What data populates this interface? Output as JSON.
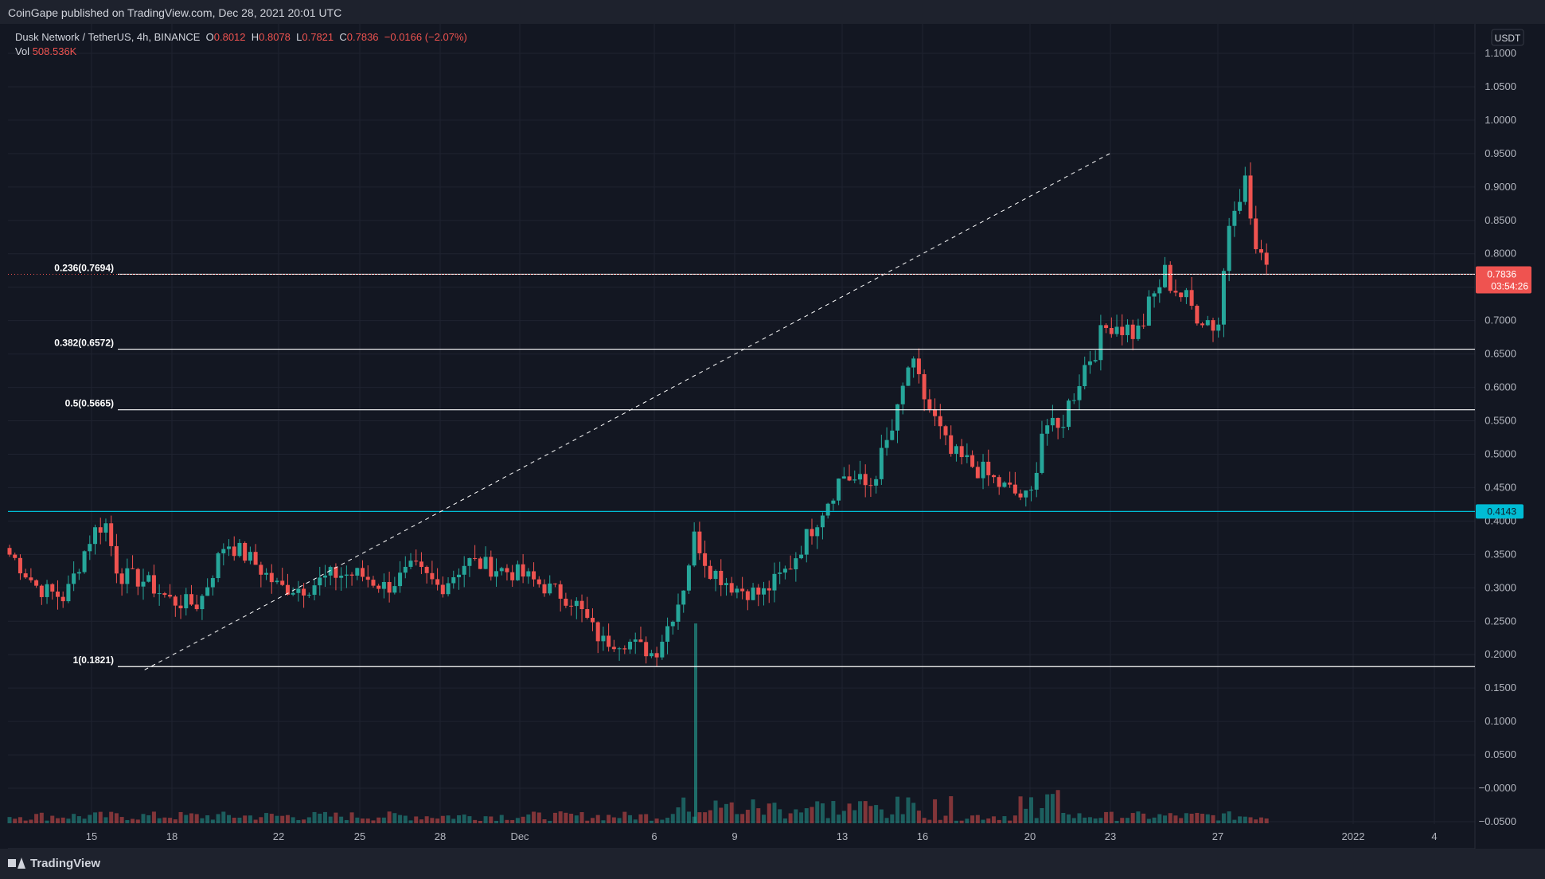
{
  "header": {
    "published": "CoinGape published on TradingView.com, Dec 28, 2021 20:01 UTC"
  },
  "footer": {
    "brand": "TradingView"
  },
  "legend": {
    "symbol": "Dusk Network / TetherUS, 4h, BINANCE",
    "o_label": "O",
    "o": "0.8012",
    "h_label": "H",
    "h": "0.8078",
    "l_label": "L",
    "l": "0.7821",
    "c_label": "C",
    "c": "0.7836",
    "change": "−0.0166 (−2.07%)",
    "vol_label": "Vol",
    "vol": "508.536K"
  },
  "price_axis": {
    "currency": "USDT",
    "ticks": [
      "1.1000",
      "1.0500",
      "1.0000",
      "0.9500",
      "0.9000",
      "0.8500",
      "0.8000",
      "0.7500",
      "0.7000",
      "0.6500",
      "0.6000",
      "0.5500",
      "0.5000",
      "0.4500",
      "0.4000",
      "0.3500",
      "0.3000",
      "0.2500",
      "0.2000",
      "0.1500",
      "0.1000",
      "0.0500",
      "−0.0000",
      "−0.0500"
    ],
    "last_price_label": "0.7836",
    "countdown_label": "03:54:26",
    "support_label": "0.4143"
  },
  "time_axis": {
    "ticks": [
      "15",
      "18",
      "22",
      "25",
      "28",
      "Dec",
      "6",
      "9",
      "13",
      "16",
      "20",
      "23",
      "27",
      "2022",
      "4"
    ]
  },
  "colors": {
    "up": "#26a69a",
    "down": "#ef5350",
    "background": "#131722",
    "grid": "#1f2330",
    "support": "#00bcd4",
    "fib": "#ffffff"
  },
  "chart_data": {
    "type": "candlestick",
    "title": "Dusk Network / TetherUS, 4h, BINANCE",
    "ylim": [
      -0.05,
      1.12
    ],
    "x_ticks": [
      "15",
      "18",
      "22",
      "25",
      "28",
      "Dec",
      "6",
      "9",
      "13",
      "16",
      "20",
      "23",
      "27",
      "2022",
      "4"
    ],
    "fibonacci_levels": [
      {
        "label": "0.236(0.7694)",
        "value": 0.7694
      },
      {
        "label": "0.382(0.6572)",
        "value": 0.6572
      },
      {
        "label": "0.5(0.5665)",
        "value": 0.5665
      },
      {
        "label": "1(0.1821)",
        "value": 0.1821
      }
    ],
    "support_line": 0.4143,
    "trendline": {
      "start": [
        "Nov 16",
        0.182
      ],
      "end": [
        "Dec 23",
        0.95
      ]
    },
    "price_path": [
      [
        "Nov 12",
        0.35
      ],
      [
        "Nov 13",
        0.3
      ],
      [
        "Nov 14",
        0.285
      ],
      [
        "Nov 15",
        0.38
      ],
      [
        "Nov 15",
        0.4
      ],
      [
        "Nov 16",
        0.32
      ],
      [
        "Nov 17",
        0.31
      ],
      [
        "Nov 18",
        0.28
      ],
      [
        "Nov 19",
        0.275
      ],
      [
        "Nov 20",
        0.37
      ],
      [
        "Nov 21",
        0.34
      ],
      [
        "Nov 22",
        0.3
      ],
      [
        "Nov 23",
        0.3
      ],
      [
        "Nov 24",
        0.32
      ],
      [
        "Nov 25",
        0.32
      ],
      [
        "Nov 26",
        0.3
      ],
      [
        "Nov 27",
        0.33
      ],
      [
        "Nov 28",
        0.3
      ],
      [
        "Nov 29",
        0.34
      ],
      [
        "Nov 30",
        0.33
      ],
      [
        "Dec 1",
        0.32
      ],
      [
        "Dec 2",
        0.3
      ],
      [
        "Dec 3",
        0.28
      ],
      [
        "Dec 4",
        0.22
      ],
      [
        "Dec 5",
        0.22
      ],
      [
        "Dec 6",
        0.2
      ],
      [
        "Dec 7",
        0.29
      ],
      [
        "Dec 7",
        0.38
      ],
      [
        "Dec 8",
        0.33
      ],
      [
        "Dec 9",
        0.3
      ],
      [
        "Dec 10",
        0.29
      ],
      [
        "Dec 11",
        0.33
      ],
      [
        "Dec 12",
        0.4
      ],
      [
        "Dec 13",
        0.47
      ],
      [
        "Dec 14",
        0.45
      ],
      [
        "Dec 15",
        0.55
      ],
      [
        "Dec 15",
        0.64
      ],
      [
        "Dec 16",
        0.59
      ],
      [
        "Dec 17",
        0.5
      ],
      [
        "Dec 18",
        0.48
      ],
      [
        "Dec 19",
        0.45
      ],
      [
        "Dec 20",
        0.43
      ],
      [
        "Dec 20",
        0.55
      ],
      [
        "Dec 21",
        0.53
      ],
      [
        "Dec 22",
        0.63
      ],
      [
        "Dec 23",
        0.7
      ],
      [
        "Dec 24",
        0.68
      ],
      [
        "Dec 25",
        0.77
      ],
      [
        "Dec 26",
        0.72
      ],
      [
        "Dec 27",
        0.69
      ],
      [
        "Dec 27",
        0.88
      ],
      [
        "Dec 28",
        0.91
      ],
      [
        "Dec 28",
        0.7836
      ]
    ],
    "volume_spike": {
      "date": "Dec 7",
      "value_relative": "max"
    },
    "last_close": 0.7836
  }
}
